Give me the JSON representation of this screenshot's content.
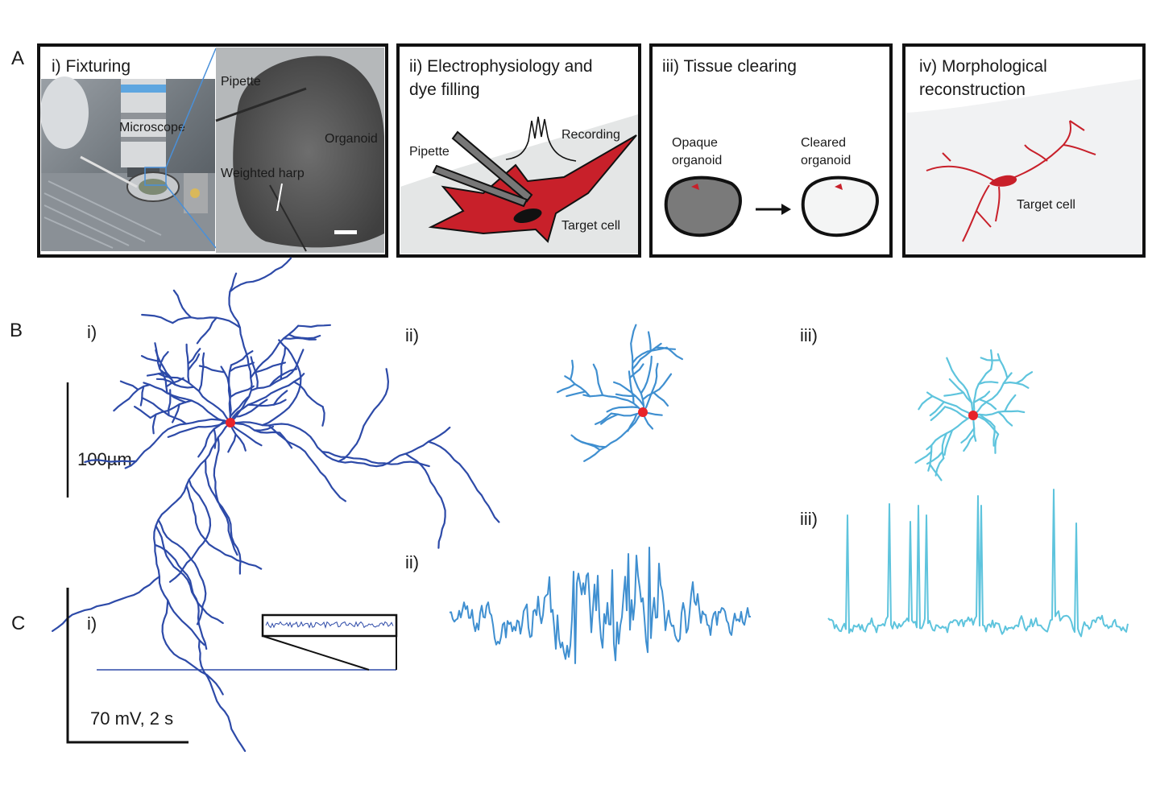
{
  "panel_a": {
    "letter": "A",
    "i": {
      "title": "i) Fixturing",
      "labels": {
        "microscope": "Microscope",
        "pipette": "Pipette",
        "organoid": "Organoid",
        "harp": "Weighted harp"
      }
    },
    "ii": {
      "title_line1": "ii) Electrophysiology and",
      "title_line2": "dye filling",
      "pipette": "Pipette",
      "recording": "Recording",
      "target": "Target cell"
    },
    "iii": {
      "title": "iii) Tissue clearing",
      "opaque_line1": "Opaque",
      "opaque_line2": "organoid",
      "cleared_line1": "Cleared",
      "cleared_line2": "organoid"
    },
    "iv": {
      "title_line1": "iv) Morphological",
      "title_line2": "reconstruction",
      "target": "Target cell"
    }
  },
  "panel_b": {
    "letter": "B",
    "label_i": "i)",
    "label_ii": "ii)",
    "label_iii": "iii)",
    "scale_label": "100µm"
  },
  "panel_c": {
    "letter": "C",
    "label_i": "i)",
    "label_ii": "ii)",
    "label_iii": "iii)",
    "scale_label": "70 mV, 2 s"
  },
  "colors": {
    "neuron_i": "#2d4aa8",
    "neuron_ii": "#3f8fd0",
    "neuron_iii": "#5ec4dd",
    "soma": "#e8232a",
    "cell_red": "#c8202a",
    "frame": "#111111"
  }
}
